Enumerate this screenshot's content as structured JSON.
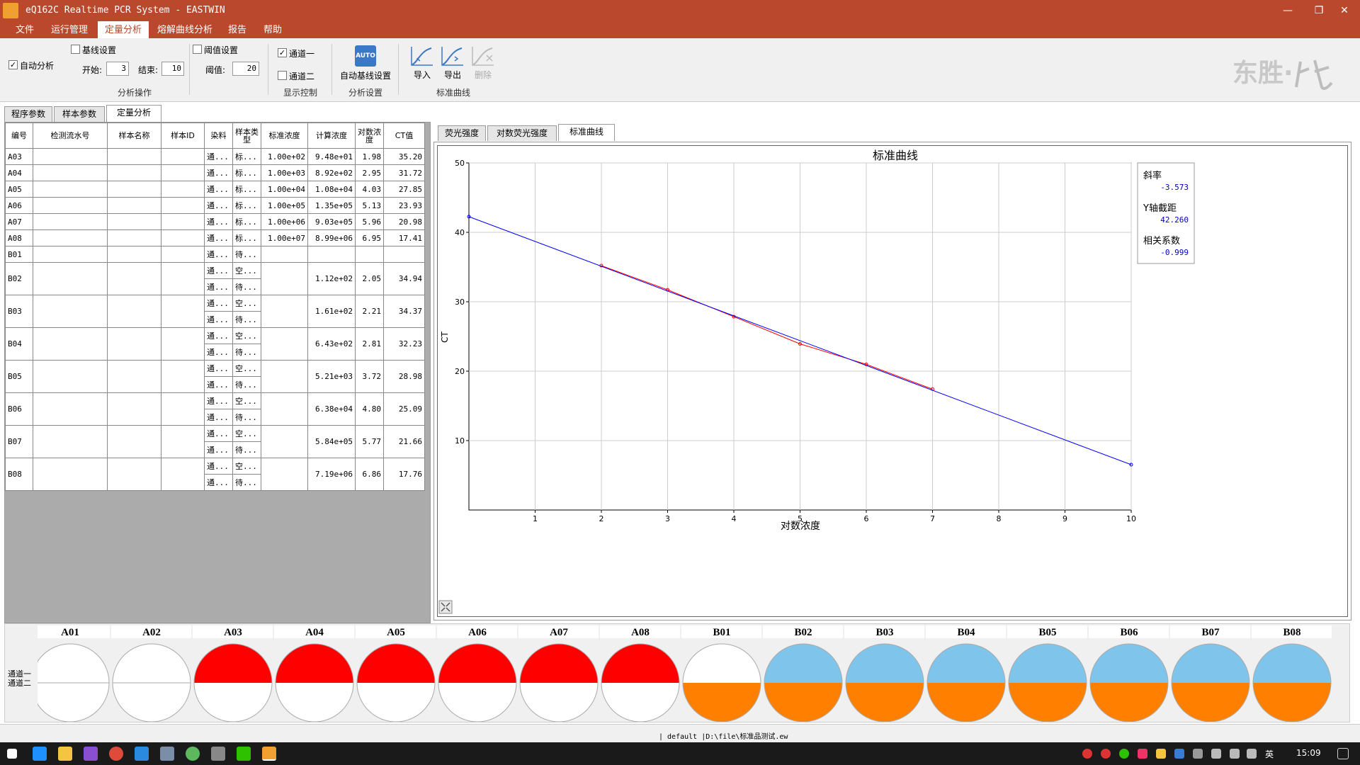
{
  "window": {
    "title": "eQ162C Realtime PCR System - EASTWIN",
    "app_icon": "app-icon"
  },
  "menu": {
    "items": [
      "文件",
      "运行管理",
      "定量分析",
      "熔解曲线分析",
      "报告",
      "帮助"
    ],
    "active": "定量分析"
  },
  "ribbon": {
    "auto_analysis": {
      "label": "自动分析",
      "checked": true
    },
    "baseline": {
      "label": "基线设置",
      "checked": false,
      "start_label": "开始:",
      "start_value": "3",
      "end_label": "结束:",
      "end_value": "10"
    },
    "threshold": {
      "label": "阈值设置",
      "checked": false,
      "value_label": "阈值:",
      "value": "20"
    },
    "group1_label": "分析操作",
    "channel1": {
      "label": "通道一",
      "checked": true
    },
    "channel2": {
      "label": "通道二",
      "checked": false
    },
    "group2_label": "显示控制",
    "auto_baseline": {
      "label": "自动基线设置",
      "icon_text": "AUTO"
    },
    "group3_label": "分析设置",
    "import_label": "导入",
    "export_label": "导出",
    "delete_label": "删除",
    "group4_label": "标准曲线",
    "logo": "东胜·"
  },
  "left_tabs": [
    "程序参数",
    "样本参数",
    "定量分析"
  ],
  "left_tab_active": "定量分析",
  "table": {
    "headers": [
      "编号",
      "检测流水号",
      "样本名称",
      "样本ID",
      "染料",
      "样本类型",
      "标准浓度",
      "计算浓度",
      "对数浓度",
      "CT值"
    ],
    "rows": [
      {
        "id": "A03",
        "dye": "通...",
        "type": "标...",
        "std": "1.00e+02",
        "calc": "9.48e+01",
        "log": "1.98",
        "ct": "35.20"
      },
      {
        "id": "A04",
        "dye": "通...",
        "type": "标...",
        "std": "1.00e+03",
        "calc": "8.92e+02",
        "log": "2.95",
        "ct": "31.72"
      },
      {
        "id": "A05",
        "dye": "通...",
        "type": "标...",
        "std": "1.00e+04",
        "calc": "1.08e+04",
        "log": "4.03",
        "ct": "27.85"
      },
      {
        "id": "A06",
        "dye": "通...",
        "type": "标...",
        "std": "1.00e+05",
        "calc": "1.35e+05",
        "log": "5.13",
        "ct": "23.93"
      },
      {
        "id": "A07",
        "dye": "通...",
        "type": "标...",
        "std": "1.00e+06",
        "calc": "9.03e+05",
        "log": "5.96",
        "ct": "20.98"
      },
      {
        "id": "A08",
        "dye": "通...",
        "type": "标...",
        "std": "1.00e+07",
        "calc": "8.99e+06",
        "log": "6.95",
        "ct": "17.41"
      },
      {
        "id": "B01",
        "dye": "通...",
        "type": "待...",
        "std": "",
        "calc": "",
        "log": "",
        "ct": ""
      },
      {
        "id": "B02",
        "dye": "通...",
        "type": "空...",
        "std": "",
        "calc": "1.12e+02",
        "log": "2.05",
        "ct": "34.94",
        "sub": {
          "dye": "通...",
          "type": "待..."
        }
      },
      {
        "id": "B03",
        "dye": "通...",
        "type": "空...",
        "std": "",
        "calc": "1.61e+02",
        "log": "2.21",
        "ct": "34.37",
        "sub": {
          "dye": "通...",
          "type": "待..."
        }
      },
      {
        "id": "B04",
        "dye": "通...",
        "type": "空...",
        "std": "",
        "calc": "6.43e+02",
        "log": "2.81",
        "ct": "32.23",
        "sub": {
          "dye": "通...",
          "type": "待..."
        }
      },
      {
        "id": "B05",
        "dye": "通...",
        "type": "空...",
        "std": "",
        "calc": "5.21e+03",
        "log": "3.72",
        "ct": "28.98",
        "sub": {
          "dye": "通...",
          "type": "待..."
        }
      },
      {
        "id": "B06",
        "dye": "通...",
        "type": "空...",
        "std": "",
        "calc": "6.38e+04",
        "log": "4.80",
        "ct": "25.09",
        "sub": {
          "dye": "通...",
          "type": "待..."
        }
      },
      {
        "id": "B07",
        "dye": "通...",
        "type": "空...",
        "std": "",
        "calc": "5.84e+05",
        "log": "5.77",
        "ct": "21.66",
        "sub": {
          "dye": "通...",
          "type": "待..."
        }
      },
      {
        "id": "B08",
        "dye": "通...",
        "type": "空...",
        "std": "",
        "calc": "7.19e+06",
        "log": "6.86",
        "ct": "17.76",
        "sub": {
          "dye": "通...",
          "type": "待..."
        }
      }
    ]
  },
  "right_tabs": [
    "荧光强度",
    "对数荧光强度",
    "标准曲线"
  ],
  "right_tab_active": "标准曲线",
  "chart_data": {
    "type": "line",
    "title": "标准曲线",
    "xlabel": "对数浓度",
    "ylabel": "CT",
    "xlim": [
      0,
      10
    ],
    "ylim": [
      0,
      50
    ],
    "xticks": [
      1,
      2,
      3,
      4,
      5,
      6,
      7,
      8,
      9,
      10
    ],
    "yticks": [
      10,
      20,
      30,
      40,
      50
    ],
    "grid": true,
    "series": [
      {
        "color": "#ff0000",
        "x": [
          2,
          3,
          4,
          5,
          6,
          7
        ],
        "y": [
          35.2,
          31.72,
          27.85,
          23.93,
          20.98,
          17.41
        ]
      },
      {
        "color": "#0000ff",
        "x": [
          0,
          10
        ],
        "y": [
          42.26,
          6.53
        ]
      }
    ],
    "stats": {
      "slope_label": "斜率",
      "slope": "-3.573",
      "intercept_label": "Y轴截距",
      "intercept": "42.260",
      "r_label": "相关系数",
      "r": "-0.999"
    }
  },
  "wells": {
    "row_labels": [
      "通道一",
      "通道二"
    ],
    "items": [
      {
        "name": "A01",
        "top": "#ffffff",
        "bottom": "#ffffff"
      },
      {
        "name": "A02",
        "top": "#ffffff",
        "bottom": "#ffffff"
      },
      {
        "name": "A03",
        "top": "#ff0000",
        "bottom": "#ffffff"
      },
      {
        "name": "A04",
        "top": "#ff0000",
        "bottom": "#ffffff"
      },
      {
        "name": "A05",
        "top": "#ff0000",
        "bottom": "#ffffff"
      },
      {
        "name": "A06",
        "top": "#ff0000",
        "bottom": "#ffffff"
      },
      {
        "name": "A07",
        "top": "#ff0000",
        "bottom": "#ffffff"
      },
      {
        "name": "A08",
        "top": "#ff0000",
        "bottom": "#ffffff"
      },
      {
        "name": "B01",
        "top": "#ffffff",
        "bottom": "#ff8000"
      },
      {
        "name": "B02",
        "top": "#7fc4ea",
        "bottom": "#ff8000"
      },
      {
        "name": "B03",
        "top": "#7fc4ea",
        "bottom": "#ff8000"
      },
      {
        "name": "B04",
        "top": "#7fc4ea",
        "bottom": "#ff8000"
      },
      {
        "name": "B05",
        "top": "#7fc4ea",
        "bottom": "#ff8000"
      },
      {
        "name": "B06",
        "top": "#7fc4ea",
        "bottom": "#ff8000"
      },
      {
        "name": "B07",
        "top": "#7fc4ea",
        "bottom": "#ff8000"
      },
      {
        "name": "B08",
        "top": "#7fc4ea",
        "bottom": "#ff8000"
      }
    ]
  },
  "status": {
    "text": "| default |D:\\file\\标准品测试.ew"
  },
  "taskbar": {
    "clock": "15:09",
    "ime": "英"
  }
}
